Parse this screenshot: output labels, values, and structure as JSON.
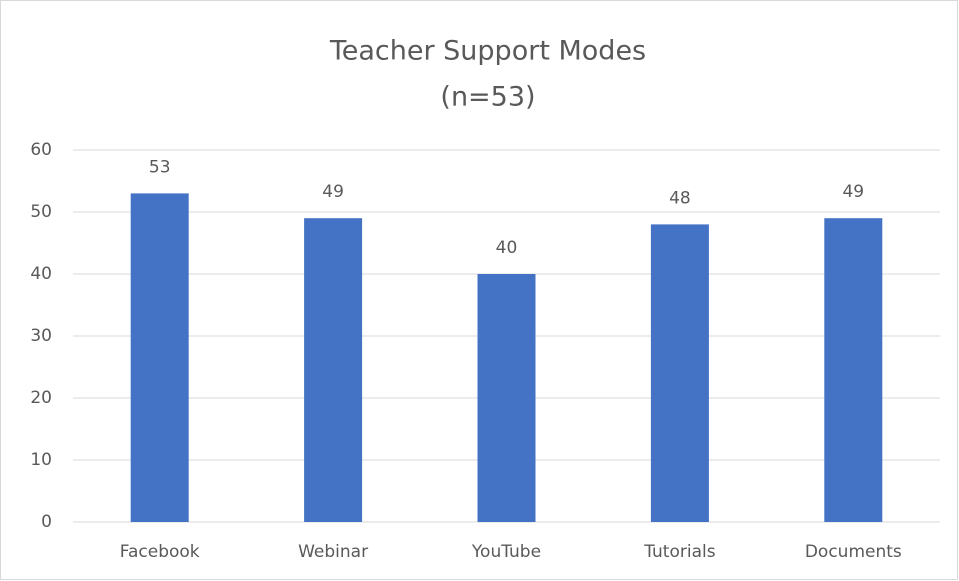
{
  "chart_data": {
    "type": "bar",
    "title": "Teacher Support Modes",
    "subtitle": "(n=53)",
    "categories": [
      "Facebook",
      "Webinar",
      "YouTube",
      "Tutorials",
      "Documents"
    ],
    "values": [
      53,
      49,
      40,
      48,
      49
    ],
    "color": "#4472c4",
    "ylim": [
      0,
      60
    ],
    "yticks": [
      0,
      10,
      20,
      30,
      40,
      50,
      60
    ],
    "grid": true
  }
}
